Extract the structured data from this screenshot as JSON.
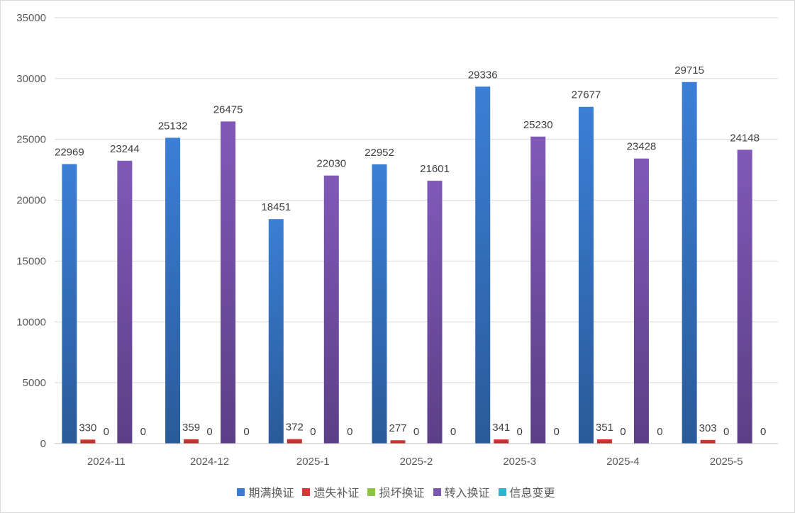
{
  "chart_data": {
    "type": "bar",
    "title": "",
    "xlabel": "",
    "ylabel": "",
    "ylim": [
      0,
      35000
    ],
    "yticks": [
      0,
      5000,
      10000,
      15000,
      20000,
      25000,
      30000,
      35000
    ],
    "grid": true,
    "legend_position": "bottom",
    "categories": [
      "2024-11",
      "2024-12",
      "2025-1",
      "2025-2",
      "2025-3",
      "2025-4",
      "2025-5"
    ],
    "series": [
      {
        "name": "期满换证",
        "color": "#3b7bd0",
        "values": [
          22969,
          25132,
          18451,
          22952,
          29336,
          27677,
          29715
        ]
      },
      {
        "name": "遗失补证",
        "color": "#d23a36",
        "values": [
          330,
          359,
          372,
          277,
          341,
          351,
          303
        ]
      },
      {
        "name": "损坏换证",
        "color": "#8cc63f",
        "values": [
          0,
          0,
          0,
          0,
          0,
          0,
          0
        ]
      },
      {
        "name": "转入换证",
        "color": "#7c59b1",
        "values": [
          23244,
          26475,
          22030,
          21601,
          25230,
          23428,
          24148
        ]
      },
      {
        "name": "信息变更",
        "color": "#2bb5cf",
        "values": [
          0,
          0,
          0,
          0,
          0,
          0,
          0
        ]
      }
    ]
  }
}
